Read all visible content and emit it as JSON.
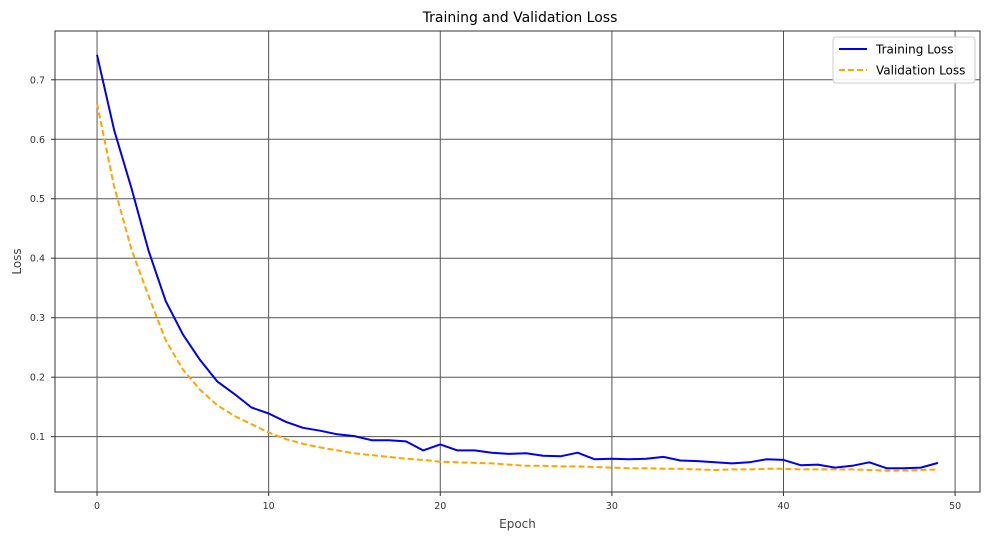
{
  "chart_data": {
    "type": "line",
    "title": "Training and Validation Loss",
    "xlabel": "Epoch",
    "ylabel": "Loss",
    "xlim": [
      -2.45,
      51.45
    ],
    "ylim": [
      0.007,
      0.782
    ],
    "xticks": [
      0,
      10,
      20,
      30,
      40,
      50
    ],
    "yticks": [
      0.1,
      0.2,
      0.3,
      0.4,
      0.5,
      0.6,
      0.7
    ],
    "grid": true,
    "legend_position": "top-right",
    "x": [
      0,
      1,
      2,
      3,
      4,
      5,
      6,
      7,
      8,
      9,
      10,
      11,
      12,
      13,
      14,
      15,
      16,
      17,
      18,
      19,
      20,
      21,
      22,
      23,
      24,
      25,
      26,
      27,
      28,
      29,
      30,
      31,
      32,
      33,
      34,
      35,
      36,
      37,
      38,
      39,
      40,
      41,
      42,
      43,
      44,
      45,
      46,
      47,
      48,
      49
    ],
    "series": [
      {
        "name": "Training Loss",
        "color": "#0000ee",
        "style": "solid",
        "values": [
          0.742,
          0.615,
          0.518,
          0.413,
          0.328,
          0.272,
          0.229,
          0.193,
          0.172,
          0.149,
          0.139,
          0.125,
          0.115,
          0.11,
          0.104,
          0.101,
          0.094,
          0.094,
          0.092,
          0.077,
          0.087,
          0.077,
          0.077,
          0.073,
          0.071,
          0.072,
          0.068,
          0.067,
          0.073,
          0.062,
          0.063,
          0.062,
          0.063,
          0.066,
          0.06,
          0.059,
          0.057,
          0.055,
          0.057,
          0.062,
          0.061,
          0.052,
          0.053,
          0.048,
          0.051,
          0.057,
          0.047,
          0.047,
          0.048,
          0.056
        ]
      },
      {
        "name": "Validation Loss",
        "color": "#ffa500",
        "style": "dashed",
        "values": [
          0.66,
          0.52,
          0.415,
          0.337,
          0.262,
          0.213,
          0.179,
          0.153,
          0.135,
          0.121,
          0.107,
          0.096,
          0.088,
          0.082,
          0.077,
          0.072,
          0.069,
          0.066,
          0.063,
          0.061,
          0.058,
          0.057,
          0.056,
          0.055,
          0.053,
          0.051,
          0.051,
          0.05,
          0.05,
          0.049,
          0.048,
          0.047,
          0.047,
          0.046,
          0.046,
          0.045,
          0.044,
          0.045,
          0.045,
          0.046,
          0.046,
          0.045,
          0.045,
          0.045,
          0.045,
          0.044,
          0.043,
          0.043,
          0.044,
          0.045
        ]
      }
    ]
  }
}
